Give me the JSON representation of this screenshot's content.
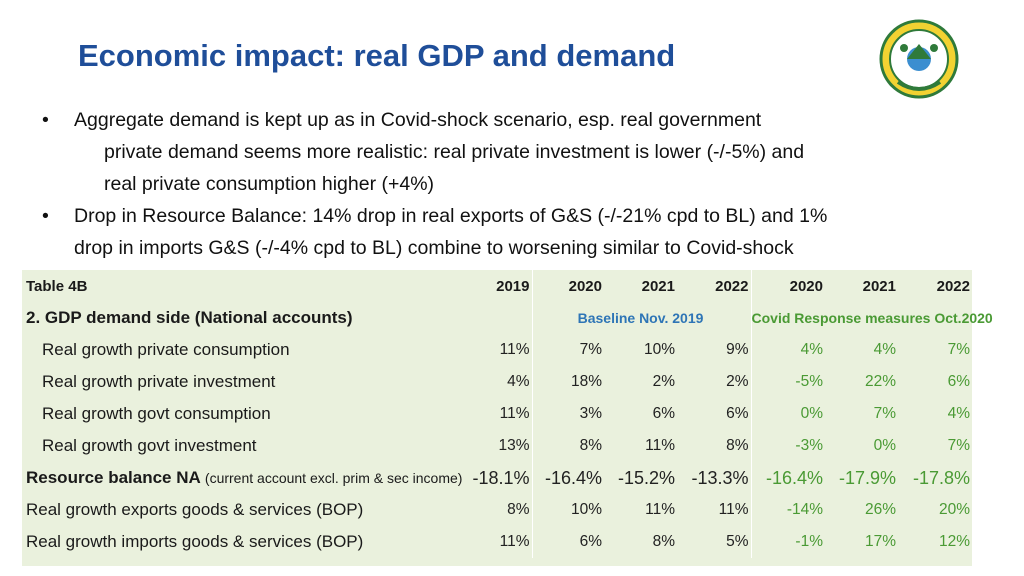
{
  "title": "Economic impact: real GDP and demand",
  "bullets": [
    {
      "lines": [
        "Aggregate demand is kept up as in Covid-shock scenario, esp. real government",
        "private demand seems more realistic: real private investment is lower (-/-5%) and",
        "real private consumption higher (+4%)"
      ]
    },
    {
      "lines": [
        "Drop in Resource Balance: 14% drop in real exports of G&S (-/-21% cpd to BL) and 1%",
        "drop in imports G&S (-/-4% cpd to BL) combine to worsening similar to Covid-shock"
      ]
    }
  ],
  "table": {
    "name": "Table 4B",
    "years": [
      "2019",
      "2020",
      "2021",
      "2022",
      "2020",
      "2021",
      "2022"
    ],
    "section": "2. GDP demand side (National accounts)",
    "group_baseline": "Baseline Nov. 2019",
    "group_covid": "Covid Response measures Oct.2020",
    "rows": [
      {
        "label": "Real growth private consumption",
        "note": "",
        "values": [
          "11%",
          "7%",
          "10%",
          "9%",
          "4%",
          "4%",
          "7%"
        ]
      },
      {
        "label": "Real growth private investment",
        "note": "",
        "values": [
          "4%",
          "18%",
          "2%",
          "2%",
          "-5%",
          "22%",
          "6%"
        ]
      },
      {
        "label": "Real growth govt consumption",
        "note": "",
        "values": [
          "11%",
          "3%",
          "6%",
          "6%",
          "0%",
          "7%",
          "4%"
        ]
      },
      {
        "label": "Real growth govt investment",
        "note": "",
        "values": [
          "13%",
          "8%",
          "11%",
          "8%",
          "-3%",
          "0%",
          "7%"
        ]
      },
      {
        "label": "Resource balance NA",
        "note": "(current account excl. prim & sec income)",
        "values": [
          "-18.1%",
          "-16.4%",
          "-15.2%",
          "-13.3%",
          "-16.4%",
          "-17.9%",
          "-17.8%"
        ]
      },
      {
        "label": "Real growth exports goods & services (BOP)",
        "note": "",
        "values": [
          "8%",
          "10%",
          "11%",
          "11%",
          "-14%",
          "26%",
          "20%"
        ]
      },
      {
        "label": "Real growth imports goods & services (BOP)",
        "note": "",
        "values": [
          "11%",
          "6%",
          "8%",
          "5%",
          "-1%",
          "17%",
          "12%"
        ]
      }
    ]
  },
  "colors": {
    "title": "#1f4e99",
    "table_bg": "#eaf1dd",
    "covid": "#4a9a34",
    "accent": "#2e75b6"
  }
}
